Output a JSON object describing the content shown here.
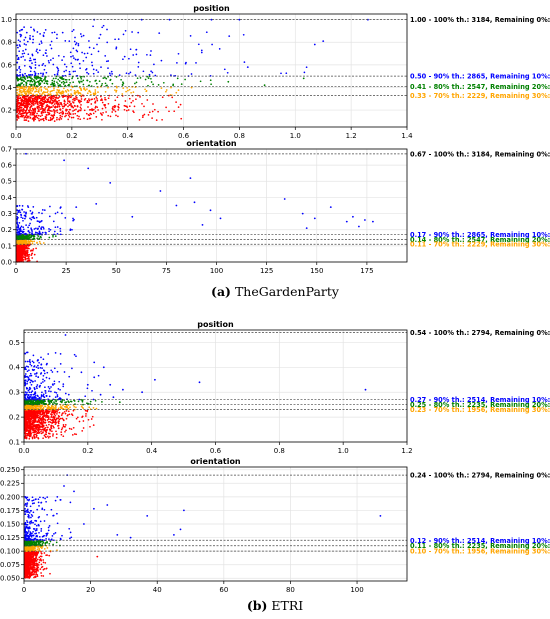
{
  "figure": {
    "caption_a": {
      "prefix": "(a)",
      "text": "TheGardenParty"
    },
    "caption_b": {
      "prefix": "(b)",
      "text": "ETRI"
    }
  },
  "colors": {
    "red": "#ff0000",
    "orange": "#ffa500",
    "green": "#008000",
    "blue": "#0000ff",
    "black": "#000000"
  },
  "chart_data": [
    {
      "type": "scatter",
      "group": "a",
      "title": "position",
      "xlim": [
        0,
        1.4
      ],
      "ylim": [
        0.05,
        1.05
      ],
      "xticks": [
        "0.0",
        "0.2",
        "0.4",
        "0.6",
        "0.8",
        "1.0",
        "1.2",
        "1.4"
      ],
      "yticks": [
        "0.2",
        "0.4",
        "0.6",
        "0.8",
        "1.0"
      ],
      "grid": true,
      "thresholds": [
        {
          "y": 1.0,
          "label": "1.00 - 100% th.: 3184, Remaining 0%: 0",
          "color": "black"
        },
        {
          "y": 0.5,
          "label": "0.50 - 90% th.: 2865, Remaining 10%: 319",
          "color": "blue"
        },
        {
          "y": 0.41,
          "label": "0.41 - 80% th.: 2547, Remaining 20%: 637",
          "color": "green"
        },
        {
          "y": 0.33,
          "label": "0.33 - 70% th.: 2229, Remaining 30%: 955",
          "color": "orange"
        }
      ],
      "scatter_bands": [
        {
          "color": "red",
          "n": 800,
          "x_scale": 0.14,
          "x_max": 0.6,
          "y_range": [
            0.1,
            0.33
          ],
          "y_bias": 0.7
        },
        {
          "color": "orange",
          "n": 230,
          "x_scale": 0.17,
          "x_max": 0.65,
          "y_range": [
            0.33,
            0.41
          ],
          "y_bias": 1
        },
        {
          "color": "green",
          "n": 230,
          "x_scale": 0.18,
          "x_max": 0.8,
          "y_range": [
            0.41,
            0.5
          ],
          "y_bias": 1
        },
        {
          "color": "blue",
          "n": 280,
          "x_scale": 0.25,
          "x_max": 1.1,
          "y_range": [
            0.5,
            0.95
          ],
          "y_bias": 1.6
        }
      ],
      "points": [
        {
          "x": 1.26,
          "y": 1.0,
          "c": "blue"
        },
        {
          "x": 1.07,
          "y": 0.78,
          "c": "blue"
        },
        {
          "x": 1.1,
          "y": 0.81,
          "c": "blue"
        },
        {
          "x": 0.8,
          "y": 1.0,
          "c": "blue"
        },
        {
          "x": 0.7,
          "y": 1.0,
          "c": "blue"
        },
        {
          "x": 0.28,
          "y": 1.0,
          "c": "blue"
        },
        {
          "x": 0.45,
          "y": 1.0,
          "c": "blue"
        },
        {
          "x": 0.55,
          "y": 1.0,
          "c": "blue"
        },
        {
          "x": 0.89,
          "y": 0.42,
          "c": "green"
        },
        {
          "x": 1.03,
          "y": 0.48,
          "c": "green"
        },
        {
          "x": 0.83,
          "y": 0.58,
          "c": "blue"
        },
        {
          "x": 0.76,
          "y": 0.45,
          "c": "green"
        }
      ]
    },
    {
      "type": "scatter",
      "group": "a",
      "title": "orientation",
      "xlim": [
        0,
        195
      ],
      "ylim": [
        0,
        0.7
      ],
      "xticks": [
        "0",
        "25",
        "50",
        "75",
        "100",
        "125",
        "150",
        "175"
      ],
      "yticks": [
        "0.0",
        "0.1",
        "0.2",
        "0.3",
        "0.4",
        "0.5",
        "0.6",
        "0.7"
      ],
      "grid": true,
      "thresholds": [
        {
          "y": 0.67,
          "label": "0.67 - 100% th.: 3184, Remaining 0%: 0",
          "color": "black"
        },
        {
          "y": 0.17,
          "label": "0.17 - 90% th.: 2865, Remaining 10%: 319",
          "color": "blue"
        },
        {
          "y": 0.14,
          "label": "0.14 - 80% th.: 2547, Remaining 20%: 637",
          "color": "green"
        },
        {
          "y": 0.11,
          "label": "0.11 - 70% th.: 2229, Remaining 30%: 955",
          "color": "orange"
        }
      ],
      "scatter_bands": [
        {
          "color": "red",
          "n": 700,
          "x_scale": 2,
          "x_max": 12,
          "y_range": [
            0.0,
            0.11
          ],
          "y_bias": 0.8
        },
        {
          "color": "orange",
          "n": 180,
          "x_scale": 3,
          "x_max": 15,
          "y_range": [
            0.11,
            0.14
          ],
          "y_bias": 1
        },
        {
          "color": "green",
          "n": 200,
          "x_scale": 4,
          "x_max": 20,
          "y_range": [
            0.14,
            0.17
          ],
          "y_bias": 1
        },
        {
          "color": "blue",
          "n": 170,
          "x_scale": 9,
          "x_max": 45,
          "y_range": [
            0.17,
            0.35
          ],
          "y_bias": 1.8
        }
      ],
      "points": [
        {
          "x": 5,
          "y": 0.67,
          "c": "blue"
        },
        {
          "x": 24,
          "y": 0.63,
          "c": "blue"
        },
        {
          "x": 36,
          "y": 0.58,
          "c": "blue"
        },
        {
          "x": 47,
          "y": 0.49,
          "c": "blue"
        },
        {
          "x": 72,
          "y": 0.44,
          "c": "blue"
        },
        {
          "x": 87,
          "y": 0.52,
          "c": "blue"
        },
        {
          "x": 89,
          "y": 0.37,
          "c": "blue"
        },
        {
          "x": 97,
          "y": 0.32,
          "c": "blue"
        },
        {
          "x": 102,
          "y": 0.27,
          "c": "blue"
        },
        {
          "x": 134,
          "y": 0.39,
          "c": "blue"
        },
        {
          "x": 143,
          "y": 0.3,
          "c": "blue"
        },
        {
          "x": 149,
          "y": 0.27,
          "c": "blue"
        },
        {
          "x": 157,
          "y": 0.34,
          "c": "blue"
        },
        {
          "x": 165,
          "y": 0.25,
          "c": "blue"
        },
        {
          "x": 168,
          "y": 0.28,
          "c": "blue"
        },
        {
          "x": 171,
          "y": 0.22,
          "c": "blue"
        },
        {
          "x": 174,
          "y": 0.26,
          "c": "blue"
        },
        {
          "x": 178,
          "y": 0.25,
          "c": "blue"
        },
        {
          "x": 145,
          "y": 0.21,
          "c": "blue"
        },
        {
          "x": 58,
          "y": 0.28,
          "c": "blue"
        },
        {
          "x": 30,
          "y": 0.34,
          "c": "blue"
        },
        {
          "x": 40,
          "y": 0.36,
          "c": "blue"
        },
        {
          "x": 80,
          "y": 0.35,
          "c": "blue"
        },
        {
          "x": 93,
          "y": 0.23,
          "c": "blue"
        }
      ]
    },
    {
      "type": "scatter",
      "group": "b",
      "title": "position",
      "xlim": [
        0,
        1.2
      ],
      "ylim": [
        0.1,
        0.55
      ],
      "xticks": [
        "0.0",
        "0.2",
        "0.4",
        "0.6",
        "0.8",
        "1.0",
        "1.2"
      ],
      "yticks": [
        "0.1",
        "0.2",
        "0.3",
        "0.4",
        "0.5"
      ],
      "grid": true,
      "thresholds": [
        {
          "y": 0.54,
          "label": "0.54 - 100% th.: 2794, Remaining 0%: 0",
          "color": "black"
        },
        {
          "y": 0.27,
          "label": "0.27 - 90% th.: 2514, Remaining 10%: 280",
          "color": "blue"
        },
        {
          "y": 0.25,
          "label": "0.25 - 80% th.: 2235, Remaining 20%: 559",
          "color": "green"
        },
        {
          "y": 0.23,
          "label": "0.23 - 70% th.: 1956, Remaining 30%: 838",
          "color": "orange"
        }
      ],
      "scatter_bands": [
        {
          "color": "red",
          "n": 900,
          "x_scale": 0.045,
          "x_max": 0.25,
          "y_range": [
            0.11,
            0.23
          ],
          "y_bias": 0.6
        },
        {
          "color": "orange",
          "n": 240,
          "x_scale": 0.05,
          "x_max": 0.25,
          "y_range": [
            0.23,
            0.25
          ],
          "y_bias": 1
        },
        {
          "color": "green",
          "n": 240,
          "x_scale": 0.05,
          "x_max": 0.28,
          "y_range": [
            0.25,
            0.27
          ],
          "y_bias": 1
        },
        {
          "color": "blue",
          "n": 240,
          "x_scale": 0.05,
          "x_max": 0.25,
          "y_range": [
            0.27,
            0.46
          ],
          "y_bias": 1.8
        }
      ],
      "points": [
        {
          "x": 0.13,
          "y": 0.53,
          "c": "blue"
        },
        {
          "x": 1.07,
          "y": 0.31,
          "c": "blue"
        },
        {
          "x": 0.55,
          "y": 0.34,
          "c": "blue"
        },
        {
          "x": 0.41,
          "y": 0.35,
          "c": "blue"
        },
        {
          "x": 0.37,
          "y": 0.3,
          "c": "blue"
        },
        {
          "x": 0.25,
          "y": 0.4,
          "c": "blue"
        },
        {
          "x": 0.22,
          "y": 0.36,
          "c": "blue"
        },
        {
          "x": 0.18,
          "y": 0.38,
          "c": "blue"
        },
        {
          "x": 0.2,
          "y": 0.33,
          "c": "blue"
        },
        {
          "x": 0.28,
          "y": 0.28,
          "c": "blue"
        },
        {
          "x": 0.31,
          "y": 0.31,
          "c": "blue"
        },
        {
          "x": 0.24,
          "y": 0.29,
          "c": "blue"
        },
        {
          "x": 0.27,
          "y": 0.33,
          "c": "blue"
        },
        {
          "x": 0.22,
          "y": 0.42,
          "c": "blue"
        },
        {
          "x": 0.3,
          "y": 0.26,
          "c": "green"
        }
      ]
    },
    {
      "type": "scatter",
      "group": "b",
      "title": "orientation",
      "xlim": [
        0,
        115
      ],
      "ylim": [
        0.045,
        0.255
      ],
      "xticks": [
        "0",
        "20",
        "40",
        "60",
        "80",
        "100"
      ],
      "yticks": [
        "0.050",
        "0.075",
        "0.100",
        "0.125",
        "0.150",
        "0.175",
        "0.200",
        "0.225",
        "0.250"
      ],
      "grid": true,
      "thresholds": [
        {
          "y": 0.24,
          "label": "0.24 - 100% th.: 2794, Remaining 0%: 0",
          "color": "black"
        },
        {
          "y": 0.12,
          "label": "0.12 - 90% th.: 2514, Remaining 10%: 280",
          "color": "blue"
        },
        {
          "y": 0.11,
          "label": "0.11 - 80% th.: 2235, Remaining 20%: 559",
          "color": "green"
        },
        {
          "y": 0.1,
          "label": "0.10 - 70% th.: 1956, Remaining 30%: 838",
          "color": "orange"
        }
      ],
      "scatter_bands": [
        {
          "color": "red",
          "n": 800,
          "x_scale": 1.6,
          "x_max": 8,
          "y_range": [
            0.05,
            0.1
          ],
          "y_bias": 0.7
        },
        {
          "color": "orange",
          "n": 200,
          "x_scale": 2,
          "x_max": 10,
          "y_range": [
            0.1,
            0.11
          ],
          "y_bias": 1
        },
        {
          "color": "green",
          "n": 200,
          "x_scale": 2.3,
          "x_max": 12,
          "y_range": [
            0.11,
            0.12
          ],
          "y_bias": 1
        },
        {
          "color": "blue",
          "n": 230,
          "x_scale": 3.5,
          "x_max": 18,
          "y_range": [
            0.12,
            0.2
          ],
          "y_bias": 1.8
        }
      ],
      "points": [
        {
          "x": 13,
          "y": 0.24,
          "c": "blue"
        },
        {
          "x": 107,
          "y": 0.165,
          "c": "blue"
        },
        {
          "x": 48,
          "y": 0.175,
          "c": "blue"
        },
        {
          "x": 37,
          "y": 0.165,
          "c": "blue"
        },
        {
          "x": 25,
          "y": 0.185,
          "c": "blue"
        },
        {
          "x": 21,
          "y": 0.178,
          "c": "blue"
        },
        {
          "x": 15,
          "y": 0.21,
          "c": "blue"
        },
        {
          "x": 12,
          "y": 0.22,
          "c": "blue"
        },
        {
          "x": 10,
          "y": 0.2,
          "c": "blue"
        },
        {
          "x": 32,
          "y": 0.125,
          "c": "blue"
        },
        {
          "x": 47,
          "y": 0.14,
          "c": "blue"
        },
        {
          "x": 45,
          "y": 0.13,
          "c": "blue"
        },
        {
          "x": 28,
          "y": 0.13,
          "c": "blue"
        },
        {
          "x": 18,
          "y": 0.15,
          "c": "blue"
        },
        {
          "x": 22,
          "y": 0.09,
          "c": "red"
        }
      ]
    }
  ]
}
